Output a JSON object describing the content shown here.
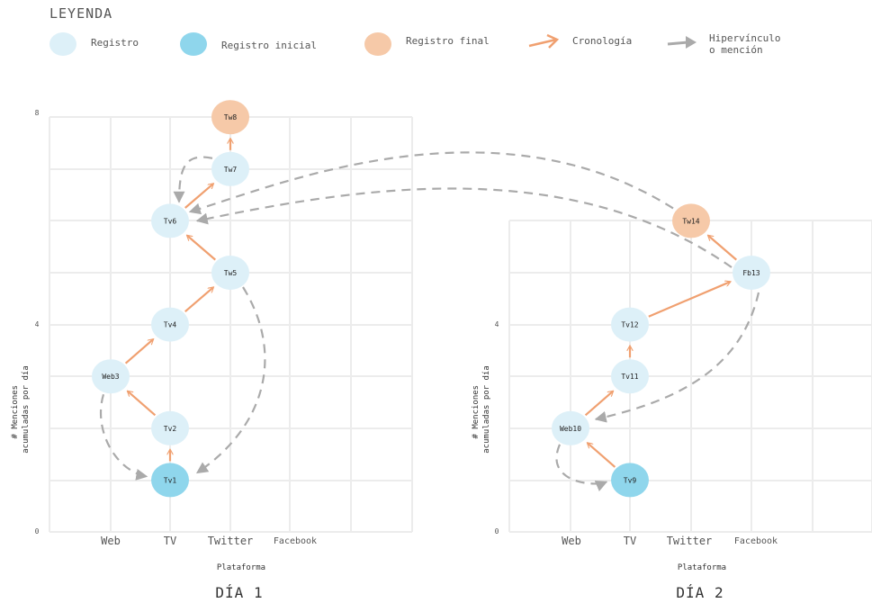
{
  "legend": {
    "title": "LEYENDA",
    "items": [
      {
        "label": "Registro",
        "color": "#ddf0f8"
      },
      {
        "label": "Registro inicial",
        "color": "#8fd6ec"
      },
      {
        "label": "Registro final",
        "color": "#f6c9a8"
      },
      {
        "label": "Cronología",
        "color": "#f0a070"
      },
      {
        "label": "Hipervínculo\no mención",
        "color": "#aaaaaa"
      }
    ]
  },
  "colors": {
    "registro": "#ddf0f8",
    "inicial": "#8fd6ec",
    "final": "#f6c9a8",
    "cronologia": "#f0a070",
    "hipervinculo": "#aaaaaa",
    "grid": "#ececec"
  },
  "panels": [
    {
      "title": "DÍA 1",
      "xlabel": "Plataforma",
      "ylabel": "# Menciones\nacumuladas por día",
      "y_ticks": [
        "0",
        "4",
        "8"
      ],
      "categories": [
        "Web",
        "TV",
        "Twitter",
        "Facebook"
      ],
      "nodes": [
        {
          "id": "Tv1",
          "label": "Tv1",
          "type": "inicial",
          "x": "TV",
          "y": 1
        },
        {
          "id": "Tv2",
          "label": "Tv2",
          "type": "registro",
          "x": "TV",
          "y": 2
        },
        {
          "id": "Web3",
          "label": "Web3",
          "type": "registro",
          "x": "Web",
          "y": 3
        },
        {
          "id": "Tv4",
          "label": "Tv4",
          "type": "registro",
          "x": "TV",
          "y": 4
        },
        {
          "id": "Tw5",
          "label": "Tw5",
          "type": "registro",
          "x": "Twitter",
          "y": 5
        },
        {
          "id": "Tv6",
          "label": "Tv6",
          "type": "registro",
          "x": "TV",
          "y": 6
        },
        {
          "id": "Tw7",
          "label": "Tw7",
          "type": "registro",
          "x": "Twitter",
          "y": 7
        },
        {
          "id": "Tw8",
          "label": "Tw8",
          "type": "final",
          "x": "Twitter",
          "y": 8
        }
      ]
    },
    {
      "title": "DÍA 2",
      "xlabel": "Plataforma",
      "ylabel": "# Menciones\nacumuladas por día",
      "y_ticks": [
        "0",
        "4"
      ],
      "categories": [
        "Web",
        "TV",
        "Twitter",
        "Facebook"
      ],
      "nodes": [
        {
          "id": "Tv9",
          "label": "Tv9",
          "type": "inicial",
          "x": "TV",
          "y": 1
        },
        {
          "id": "Web10",
          "label": "Web10",
          "type": "registro",
          "x": "Web",
          "y": 2
        },
        {
          "id": "Tv11",
          "label": "Tv11",
          "type": "registro",
          "x": "TV",
          "y": 3
        },
        {
          "id": "Tv12",
          "label": "Tv12",
          "type": "registro",
          "x": "TV",
          "y": 4
        },
        {
          "id": "Fb13",
          "label": "Fb13",
          "type": "registro",
          "x": "Facebook",
          "y": 5
        },
        {
          "id": "Tw14",
          "label": "Tw14",
          "type": "final",
          "x": "Twitter",
          "y": 6
        }
      ]
    }
  ],
  "edges": {
    "cronologia": [
      [
        "Tv1",
        "Tv2"
      ],
      [
        "Tv2",
        "Web3"
      ],
      [
        "Web3",
        "Tv4"
      ],
      [
        "Tv4",
        "Tw5"
      ],
      [
        "Tw5",
        "Tv6"
      ],
      [
        "Tv6",
        "Tw7"
      ],
      [
        "Tw7",
        "Tw8"
      ],
      [
        "Tv9",
        "Web10"
      ],
      [
        "Web10",
        "Tv11"
      ],
      [
        "Tv11",
        "Tv12"
      ],
      [
        "Tv12",
        "Fb13"
      ],
      [
        "Fb13",
        "Tw14"
      ]
    ],
    "hipervinculo": [
      [
        "Web3",
        "Tv1"
      ],
      [
        "Tw5",
        "Tv1"
      ],
      [
        "Tw7",
        "Tv6"
      ],
      [
        "Web10",
        "Tv9"
      ],
      [
        "Fb13",
        "Web10"
      ],
      [
        "Tw14",
        "Tv6"
      ],
      [
        "Fb13",
        "Tv6"
      ]
    ]
  }
}
